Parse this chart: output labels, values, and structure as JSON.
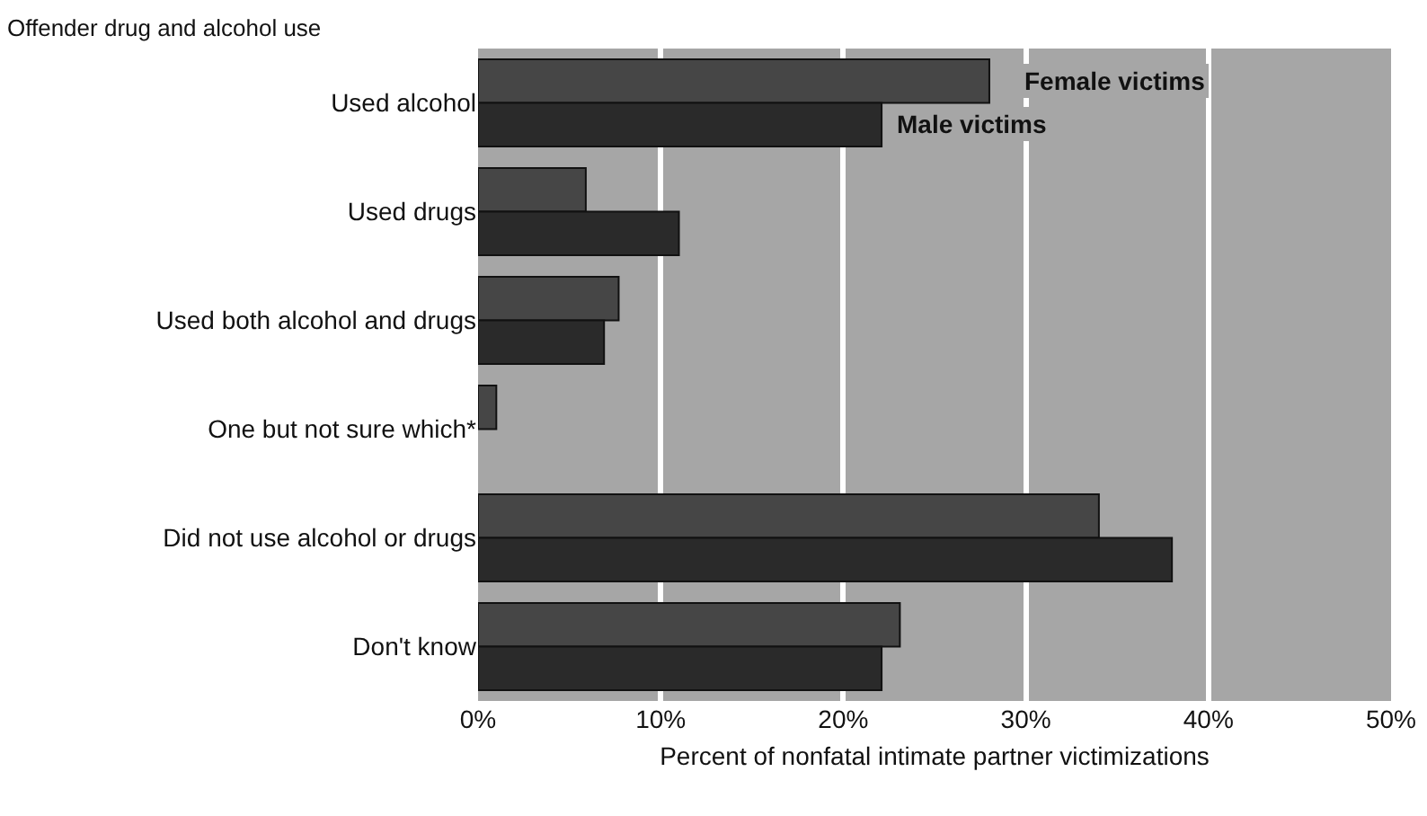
{
  "chart_data": {
    "type": "bar",
    "orientation": "horizontal",
    "ylabel": "Offender drug and alcohol use",
    "xlabel": "Percent of nonfatal intimate partner victimizations",
    "categories": [
      "Used alcohol",
      "Used drugs",
      "Used both alcohol and drugs",
      "One but not sure which*",
      "Did not use alcohol or drugs",
      "Don't know"
    ],
    "series": [
      {
        "name": "Female victims",
        "color": "#464646",
        "values": [
          28.0,
          5.9,
          7.7,
          1.0,
          34.0,
          23.1
        ]
      },
      {
        "name": "Male victims",
        "color": "#2a2a2a",
        "values": [
          22.1,
          11.0,
          6.9,
          null,
          38.0,
          22.1
        ]
      }
    ],
    "xlim": [
      0,
      50
    ],
    "xticks": [
      {
        "value": 0,
        "label": "0%"
      },
      {
        "value": 10,
        "label": "10%"
      },
      {
        "value": 20,
        "label": "20%"
      },
      {
        "value": 30,
        "label": "30%"
      },
      {
        "value": 40,
        "label": "40%"
      },
      {
        "value": 50,
        "label": "50%"
      }
    ],
    "grid": "x",
    "legend": false
  }
}
